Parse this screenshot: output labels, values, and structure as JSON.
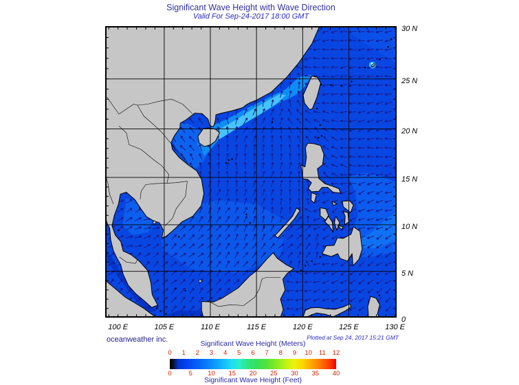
{
  "header": {
    "title": "Significant Wave Height with Wave Direction",
    "subtitle": "Valid For Sep-24-2017 18:00 GMT"
  },
  "footer": {
    "credit": "oceanweather inc.",
    "plotted_note": "Plotted at Sep 24, 2017 15:21 GMT"
  },
  "axes": {
    "lat_values": [
      30,
      25,
      20,
      15,
      10,
      5,
      0
    ],
    "lat_labels": [
      "30 N",
      "25 N",
      "20 N",
      "15 N",
      "10 N",
      "5 N",
      "0"
    ],
    "lon_values": [
      100,
      105,
      110,
      115,
      120,
      125,
      130
    ],
    "lon_labels": [
      "100 E",
      "105 E",
      "110 E",
      "115 E",
      "120 E",
      "125 E",
      "130 E"
    ],
    "grid_lon": [
      105,
      110,
      115,
      120,
      125
    ],
    "grid_lat": [
      5,
      10,
      15,
      20,
      25
    ]
  },
  "legend": {
    "meters_title": "Significant Wave Height (Meters)",
    "feet_title": "Significant Wave Height (Feet)",
    "meters_ticks": [
      "0",
      "1",
      "2",
      "3",
      "4",
      "5",
      "6",
      "7",
      "8",
      "9",
      "10",
      "11",
      "12"
    ],
    "feet_ticks": [
      "0",
      "5",
      "10",
      "15",
      "20",
      "25",
      "30",
      "35",
      "40"
    ],
    "gradient": [
      [
        "#000000",
        0
      ],
      [
        "#0a0a14",
        1.5
      ],
      [
        "#0133cf",
        5
      ],
      [
        "#0244f0",
        10
      ],
      [
        "#0563f6",
        17
      ],
      [
        "#0a8cfa",
        25
      ],
      [
        "#12b4fa",
        31
      ],
      [
        "#1edcf2",
        37
      ],
      [
        "#2aeec8",
        42
      ],
      [
        "#2ee67e",
        47
      ],
      [
        "#35e060",
        52
      ],
      [
        "#52e23a",
        58
      ],
      [
        "#86ea24",
        64
      ],
      [
        "#c2f214",
        70
      ],
      [
        "#f0f00a",
        75
      ],
      [
        "#fcd405",
        80
      ],
      [
        "#fda803",
        85
      ],
      [
        "#fe7a02",
        90
      ],
      [
        "#fe4801",
        95
      ],
      [
        "#f20000",
        100
      ]
    ]
  },
  "colors": {
    "ocean_base": "#0846e2",
    "land": "#c6c6c6",
    "coastline": "#000000",
    "grid": "#000000",
    "frame": "#000000",
    "arrow": "#1a1a8c",
    "storm_core": "#2fb6f9",
    "storm_dot": "#fffce0"
  },
  "wave_height_regions": [
    {
      "name": "ne-pacific-band",
      "color": "#0a50e8",
      "poly": [
        [
          123.5,
          30.6
        ],
        [
          126.5,
          28.6
        ],
        [
          130.5,
          26.3
        ],
        [
          130.5,
          30.6
        ]
      ]
    },
    {
      "name": "gulf-tonkin-light",
      "color": "#0d63ee",
      "poly": [
        [
          105.9,
          20.7
        ],
        [
          107.6,
          20.5
        ],
        [
          109.2,
          19.7
        ],
        [
          109.9,
          18.4
        ],
        [
          109.4,
          16.9
        ],
        [
          108.5,
          15.9
        ],
        [
          107.7,
          16.2
        ],
        [
          106.5,
          17.6
        ],
        [
          105.9,
          18.8
        ]
      ]
    },
    {
      "name": "central-scs-light",
      "color": "#0b57ea",
      "poly": [
        [
          104.5,
          10.8
        ],
        [
          107.5,
          12.0
        ],
        [
          111.0,
          12.6
        ],
        [
          115.0,
          12.2
        ],
        [
          118.2,
          10.4
        ],
        [
          117.6,
          6.6
        ],
        [
          113.0,
          4.8
        ],
        [
          108.0,
          5.2
        ],
        [
          104.8,
          7.4
        ]
      ]
    },
    {
      "name": "gulf-thailand-light",
      "color": "#0c5fee",
      "poly": [
        [
          100.9,
          12.8
        ],
        [
          102.6,
          12.3
        ],
        [
          103.9,
          11.0
        ],
        [
          103.3,
          9.2
        ],
        [
          101.6,
          8.9
        ],
        [
          100.5,
          9.9
        ]
      ]
    },
    {
      "name": "east-luzon-light",
      "color": "#0b5cee",
      "poly": [
        [
          123.8,
          7.6
        ],
        [
          125.2,
          9.0
        ],
        [
          126.0,
          11.0
        ],
        [
          125.7,
          13.5
        ],
        [
          124.9,
          15.1
        ],
        [
          126.6,
          15.5
        ],
        [
          128.6,
          15.1
        ],
        [
          130.5,
          14.3
        ],
        [
          130.5,
          7.2
        ],
        [
          127.0,
          6.5
        ],
        [
          124.8,
          6.8
        ]
      ]
    },
    {
      "name": "east-luzon-core",
      "color": "#0f72f3",
      "poly": [
        [
          126.0,
          8.3
        ],
        [
          127.5,
          9.2
        ],
        [
          129.0,
          10.6
        ],
        [
          130.5,
          11.6
        ],
        [
          130.5,
          8.6
        ],
        [
          128.2,
          7.5
        ],
        [
          126.6,
          7.5
        ]
      ]
    },
    {
      "name": "hk-swell-band",
      "color": "#0f8df6",
      "poly": [
        [
          109.4,
          17.2
        ],
        [
          111.0,
          19.0
        ],
        [
          113.0,
          20.2
        ],
        [
          115.2,
          21.4
        ],
        [
          117.4,
          22.6
        ],
        [
          119.2,
          23.4
        ],
        [
          120.2,
          24.2
        ],
        [
          121.0,
          25.4
        ],
        [
          119.6,
          25.2
        ],
        [
          118.2,
          24.0
        ],
        [
          116.4,
          23.2
        ],
        [
          114.2,
          22.2
        ],
        [
          112.2,
          21.2
        ],
        [
          110.4,
          20.4
        ],
        [
          109.2,
          19.6
        ],
        [
          108.6,
          18.4
        ]
      ]
    },
    {
      "name": "hk-swell-core",
      "color": "#45c4fb",
      "poly": [
        [
          110.9,
          18.9
        ],
        [
          112.6,
          19.9
        ],
        [
          114.3,
          20.9
        ],
        [
          115.8,
          21.7
        ],
        [
          117.1,
          22.5
        ],
        [
          118.2,
          23.4
        ],
        [
          117.5,
          23.5
        ],
        [
          116.1,
          22.8
        ],
        [
          114.4,
          21.9
        ],
        [
          112.7,
          20.9
        ],
        [
          111.2,
          20.1
        ],
        [
          110.3,
          19.4
        ]
      ]
    },
    {
      "name": "shallow-south-dark",
      "color": "#0334c8",
      "poly": [
        [
          104.2,
          -0.2
        ],
        [
          106.5,
          0.8
        ],
        [
          109.2,
          0.7
        ],
        [
          111.8,
          1.15
        ],
        [
          114.5,
          1.4
        ],
        [
          117.4,
          -0.2
        ]
      ]
    },
    {
      "name": "malacca-dark",
      "color": "#0334c8",
      "poly": [
        [
          99.3,
          6.6
        ],
        [
          100.1,
          5.2
        ],
        [
          101.4,
          3.5
        ],
        [
          102.9,
          1.8
        ],
        [
          104.1,
          0.8
        ],
        [
          103.3,
          0.5
        ],
        [
          101.6,
          2.2
        ],
        [
          100.0,
          4.4
        ],
        [
          98.9,
          6.1
        ],
        [
          98.7,
          7.2
        ]
      ]
    }
  ],
  "wave_direction_anchors": [
    [
      128,
      28,
      185
    ],
    [
      123.5,
      29,
      190
    ],
    [
      124,
      26.5,
      185
    ],
    [
      121.5,
      26.5,
      185
    ],
    [
      126,
      22,
      195
    ],
    [
      122.5,
      24,
      185
    ],
    [
      121.3,
      22.3,
      160
    ],
    [
      119.5,
      21.5,
      125
    ],
    [
      118.5,
      24,
      80
    ],
    [
      117,
      21.5,
      75
    ],
    [
      114,
      20.5,
      55
    ],
    [
      111.8,
      19.8,
      95
    ],
    [
      108.8,
      19.9,
      130
    ],
    [
      107.8,
      19.2,
      135
    ],
    [
      109.5,
      17.3,
      105
    ],
    [
      113,
      16.5,
      85
    ],
    [
      116.5,
      14,
      75
    ],
    [
      119,
      14.5,
      85
    ],
    [
      110.5,
      12,
      60
    ],
    [
      107.5,
      8.5,
      40
    ],
    [
      103.3,
      9.5,
      22
    ],
    [
      101.4,
      12.6,
      28
    ],
    [
      106,
      4,
      45
    ],
    [
      111,
      4.5,
      50
    ],
    [
      115,
      6.5,
      55
    ],
    [
      119.5,
      8.5,
      45
    ],
    [
      123,
      11,
      215
    ],
    [
      126.5,
      12,
      200
    ],
    [
      128,
      7,
      210
    ],
    [
      124,
      4,
      205
    ],
    [
      121.5,
      2.5,
      195
    ],
    [
      127.5,
      2.5,
      225
    ]
  ]
}
